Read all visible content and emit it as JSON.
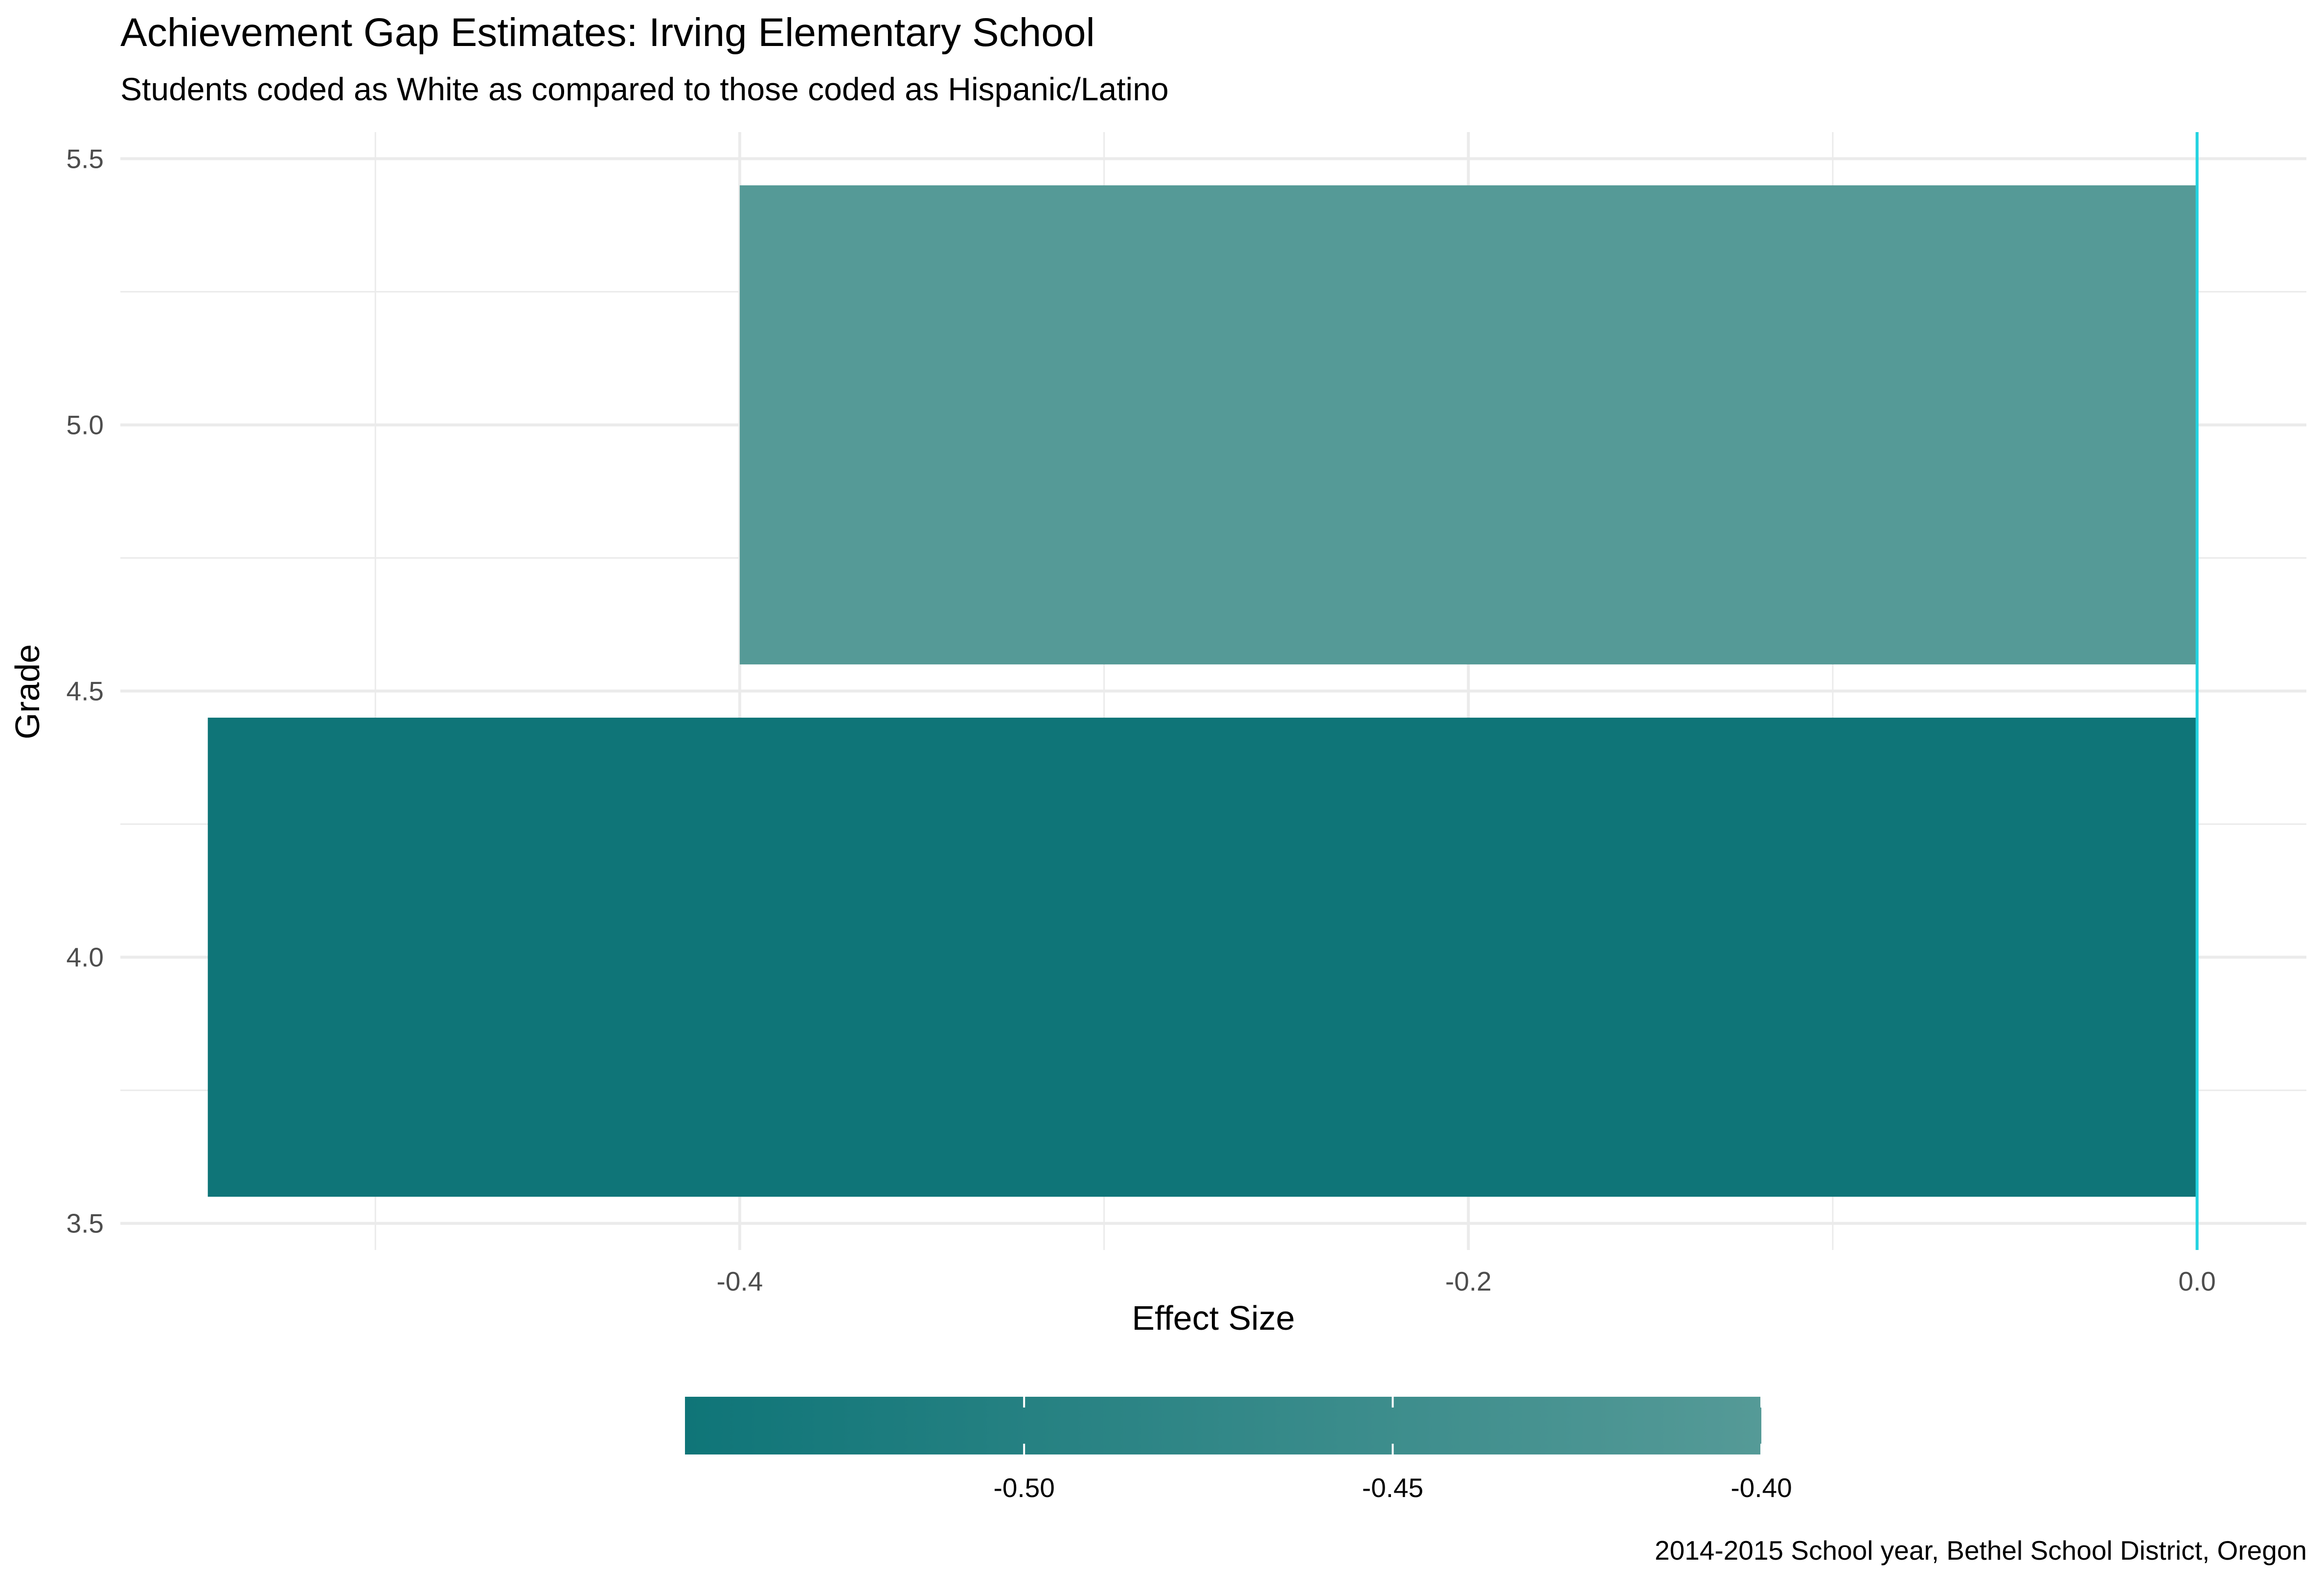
{
  "title": "Achievement Gap Estimates: Irving Elementary School",
  "subtitle": "Students coded as White as compared to those coded as Hispanic/Latino",
  "caption": "2014-2015 School year, Bethel School District, Oregon",
  "colors": {
    "grid": "#ebebeb",
    "zero_line": "#22d3e0",
    "axis_text": "#4d4d4d",
    "scale_low": "#0f7578",
    "scale_high": "#559a97"
  },
  "chart_data": {
    "type": "bar",
    "orientation": "horizontal",
    "xlabel": "Effect Size",
    "ylabel": "Grade",
    "xlim": [
      -0.57,
      0.03
    ],
    "ylim": [
      3.45,
      5.55
    ],
    "x_ticks": [
      -0.4,
      -0.2,
      0.0
    ],
    "x_tick_labels": [
      "-0.4",
      "-0.2",
      "0.0"
    ],
    "x_minor_ticks": [
      -0.5,
      -0.3,
      -0.1
    ],
    "y_ticks": [
      3.5,
      4.0,
      4.5,
      5.0,
      5.5
    ],
    "y_tick_labels": [
      "3.5",
      "4.0",
      "4.5",
      "5.0",
      "5.5"
    ],
    "y_minor_ticks": [
      3.75,
      4.25,
      4.75,
      5.25
    ],
    "bar_width": 0.9,
    "reference_line": {
      "x": 0.0
    },
    "grid": true,
    "bars": [
      {
        "grade": 4,
        "effect_size": -0.546
      },
      {
        "grade": 5,
        "effect_size": -0.4
      }
    ],
    "legend": {
      "type": "colorbar",
      "position": "bottom",
      "range": [
        -0.546,
        -0.4
      ],
      "ticks": [
        -0.5,
        -0.45,
        -0.4
      ],
      "tick_labels": [
        "-0.50",
        "-0.45",
        "-0.40"
      ]
    }
  }
}
